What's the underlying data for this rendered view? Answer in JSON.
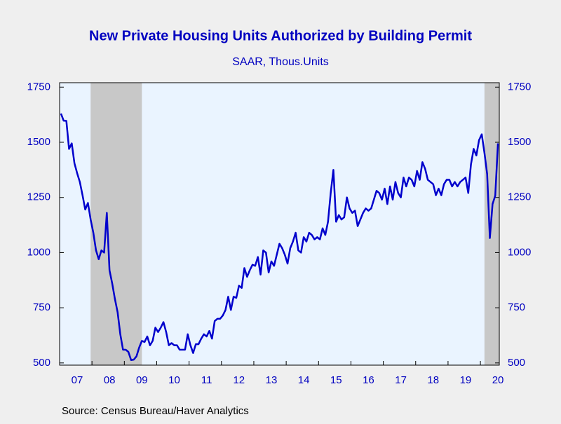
{
  "chart_data": {
    "type": "line",
    "title": "New Private Housing Units Authorized by Building Permit",
    "subtitle": "SAAR, Thous.Units",
    "source": "Source:  Census Bureau/Haver Analytics",
    "categories": [
      null,
      null,
      null,
      null,
      null,
      null,
      "07",
      null,
      null,
      null,
      null,
      null,
      null,
      null,
      null,
      null,
      null,
      null,
      "08",
      null,
      null,
      null,
      null,
      null,
      null,
      null,
      null,
      null,
      null,
      null,
      "09",
      null,
      null,
      null,
      null,
      null,
      null,
      null,
      null,
      null,
      null,
      null,
      "10",
      null,
      null,
      null,
      null,
      null,
      null,
      null,
      null,
      null,
      null,
      null,
      "11",
      null,
      null,
      null,
      null,
      null,
      null,
      null,
      null,
      null,
      null,
      null,
      "12",
      null,
      null,
      null,
      null,
      null,
      null,
      null,
      null,
      null,
      null,
      null,
      "13",
      null,
      null,
      null,
      null,
      null,
      null,
      null,
      null,
      null,
      null,
      null,
      "14",
      null,
      null,
      null,
      null,
      null,
      null,
      null,
      null,
      null,
      null,
      null,
      "15",
      null,
      null,
      null,
      null,
      null,
      null,
      null,
      null,
      null,
      null,
      null,
      "16",
      null,
      null,
      null,
      null,
      null,
      null,
      null,
      null,
      null,
      null,
      null,
      "17",
      null,
      null,
      null,
      null,
      null,
      null,
      null,
      null,
      null,
      null,
      null,
      "18",
      null,
      null,
      null,
      null,
      null,
      null,
      null,
      null,
      null,
      null,
      null,
      "19",
      null,
      null,
      null,
      null,
      null,
      null,
      null,
      null,
      null,
      null,
      null,
      "20"
    ],
    "series": [
      {
        "color": "#0000cc",
        "values": [
          1630,
          1598,
          1597,
          1470,
          1495,
          1405,
          1360,
          1320,
          1260,
          1195,
          1225,
          1150,
          1090,
          1010,
          970,
          1010,
          1000,
          1180,
          920,
          860,
          790,
          730,
          630,
          560,
          560,
          550,
          513,
          515,
          530,
          570,
          600,
          595,
          620,
          580,
          600,
          660,
          640,
          660,
          685,
          640,
          580,
          590,
          580,
          580,
          560,
          560,
          560,
          630,
          580,
          545,
          585,
          585,
          610,
          630,
          620,
          645,
          610,
          690,
          700,
          700,
          715,
          740,
          800,
          740,
          800,
          795,
          850,
          840,
          930,
          890,
          920,
          945,
          940,
          980,
          900,
          1010,
          1000,
          910,
          960,
          940,
          990,
          1040,
          1020,
          990,
          950,
          1020,
          1050,
          1090,
          1010,
          1000,
          1070,
          1050,
          1090,
          1080,
          1060,
          1070,
          1060,
          1110,
          1080,
          1140,
          1270,
          1375,
          1140,
          1170,
          1150,
          1160,
          1250,
          1200,
          1180,
          1190,
          1120,
          1150,
          1180,
          1200,
          1190,
          1200,
          1240,
          1280,
          1270,
          1240,
          1290,
          1220,
          1300,
          1240,
          1320,
          1270,
          1250,
          1340,
          1300,
          1340,
          1330,
          1300,
          1370,
          1330,
          1410,
          1380,
          1330,
          1320,
          1310,
          1260,
          1290,
          1260,
          1310,
          1330,
          1330,
          1300,
          1320,
          1300,
          1320,
          1330,
          1340,
          1270,
          1400,
          1470,
          1440,
          1510,
          1536,
          1452,
          1356,
          1066,
          1220,
          1258,
          1495
        ]
      }
    ],
    "recession_shading": [
      [
        11,
        29
      ],
      [
        157,
        162
      ]
    ],
    "ylim": [
      490,
      1770
    ],
    "yticks": [
      500,
      750,
      1000,
      1250,
      1500,
      1750
    ],
    "y2lim": [
      490,
      1770
    ],
    "y2ticks": [
      500,
      750,
      1000,
      1250,
      1500,
      1750
    ]
  }
}
